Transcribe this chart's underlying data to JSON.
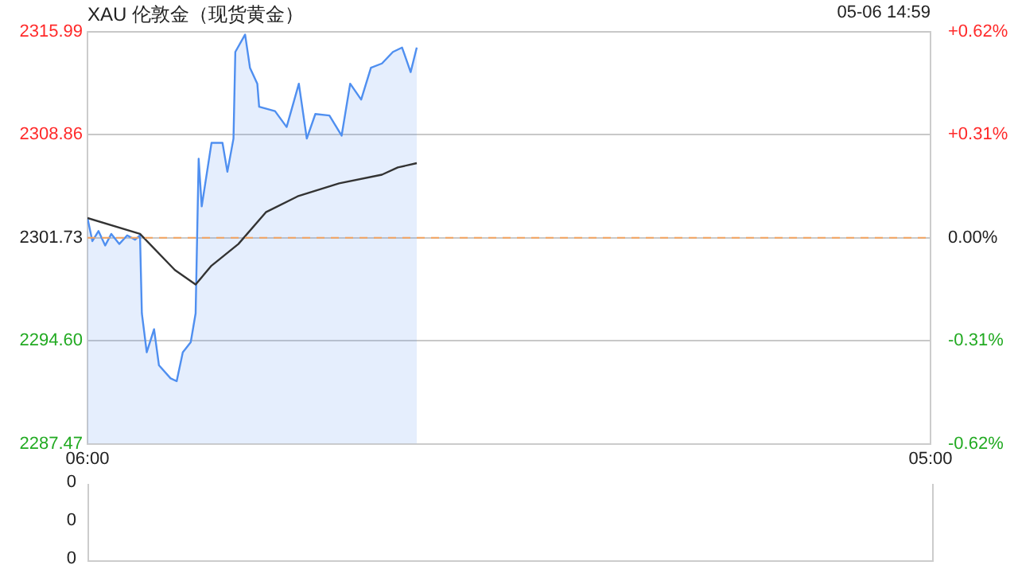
{
  "chart_data": [
    {
      "type": "line",
      "title": "XAU 伦敦金（现货黄金）",
      "annotations": [
        "05-06 14:59"
      ],
      "marker": "none",
      "grid": "y",
      "xlim": [
        "--05-06T06:00",
        "--05-07T05:00"
      ],
      "xticks": [
        {
          "value": "--05-06T06:00",
          "label": "06:00"
        },
        {
          "value": "--05-07T05:00",
          "label": "05:00"
        }
      ],
      "ylim": [
        2287.47,
        2315.99
      ],
      "yticks": [
        {
          "value": 2287.47,
          "label": "2287.47"
        },
        {
          "value": 2294.6,
          "label": "2294.60"
        },
        {
          "value": 2301.73,
          "label": "2301.73"
        },
        {
          "value": 2308.86,
          "label": "2308.86"
        },
        {
          "value": 2315.99,
          "label": "2315.99"
        }
      ],
      "y2lim": [
        -0.62,
        0.62
      ],
      "y2ticks": [
        {
          "value": -0.62,
          "label": "-0.62%"
        },
        {
          "value": -0.31,
          "label": "-0.31%"
        },
        {
          "value": 0,
          "label": "0.00%"
        },
        {
          "value": 0.31,
          "label": "+0.31%"
        },
        {
          "value": 0.62,
          "label": "+0.62%"
        }
      ],
      "ref_lines": [
        {
          "axis": "y",
          "value": 2301.73,
          "color": "#f4a460",
          "line_style": "dashed"
        }
      ],
      "series": [
        {
          "type": "area",
          "color": "#4f8ff0",
          "x": [
            "--05-06T06:00",
            "--05-06T06:08",
            "--05-06T06:18",
            "--05-06T06:29",
            "--05-06T06:39",
            "--05-06T06:52",
            "--05-06T07:05",
            "--05-06T07:18",
            "--05-06T07:26",
            "--05-06T07:29",
            "--05-06T07:37",
            "--05-06T07:49",
            "--05-06T07:57",
            "--05-06T08:16",
            "--05-06T08:26",
            "--05-06T08:36",
            "--05-06T08:49",
            "--05-06T08:57",
            "--05-06T09:02",
            "--05-06T09:07",
            "--05-06T09:23",
            "--05-06T09:41",
            "--05-06T09:49",
            "--05-06T09:59",
            "--05-06T10:02",
            "--05-06T10:18",
            "--05-06T10:26",
            "--05-06T10:38",
            "--05-06T10:41",
            "--05-06T11:07",
            "--05-06T11:26",
            "--05-06T11:46",
            "--05-06T11:59",
            "--05-06T12:13",
            "--05-06T12:36",
            "--05-06T12:56",
            "--05-06T13:10",
            "--05-06T13:28",
            "--05-06T13:44",
            "--05-06T14:02",
            "--05-06T14:20",
            "--05-06T14:35",
            "--05-06T14:49",
            "--05-06T14:59"
          ],
          "values": [
            2303.1,
            2301.5,
            2302.2,
            2301.2,
            2302.0,
            2301.3,
            2301.9,
            2301.6,
            2301.9,
            2296.5,
            2293.8,
            2295.4,
            2292.9,
            2292.0,
            2291.8,
            2293.8,
            2294.5,
            2296.5,
            2307.2,
            2303.9,
            2308.3,
            2308.3,
            2306.3,
            2308.6,
            2314.6,
            2315.8,
            2313.5,
            2312.4,
            2310.8,
            2310.5,
            2309.4,
            2312.4,
            2308.6,
            2310.3,
            2310.2,
            2308.8,
            2312.4,
            2311.3,
            2313.5,
            2313.8,
            2314.6,
            2314.9,
            2313.2,
            2314.9
          ]
        },
        {
          "type": "line",
          "color": "#333333",
          "x": [
            "--05-06T06:00",
            "--05-06T07:26",
            "--05-06T08:23",
            "--05-06T08:57",
            "--05-06T09:23",
            "--05-06T10:07",
            "--05-06T10:52",
            "--05-06T11:44",
            "--05-06T12:52",
            "--05-06T14:02",
            "--05-06T14:28",
            "--05-06T14:59"
          ],
          "values": [
            2303.1,
            2302.0,
            2299.5,
            2298.5,
            2299.8,
            2301.3,
            2303.5,
            2304.6,
            2305.5,
            2306.1,
            2306.6,
            2306.9
          ]
        }
      ]
    },
    {
      "type": "other",
      "annotations": [
        "0",
        "0",
        "0"
      ]
    }
  ]
}
